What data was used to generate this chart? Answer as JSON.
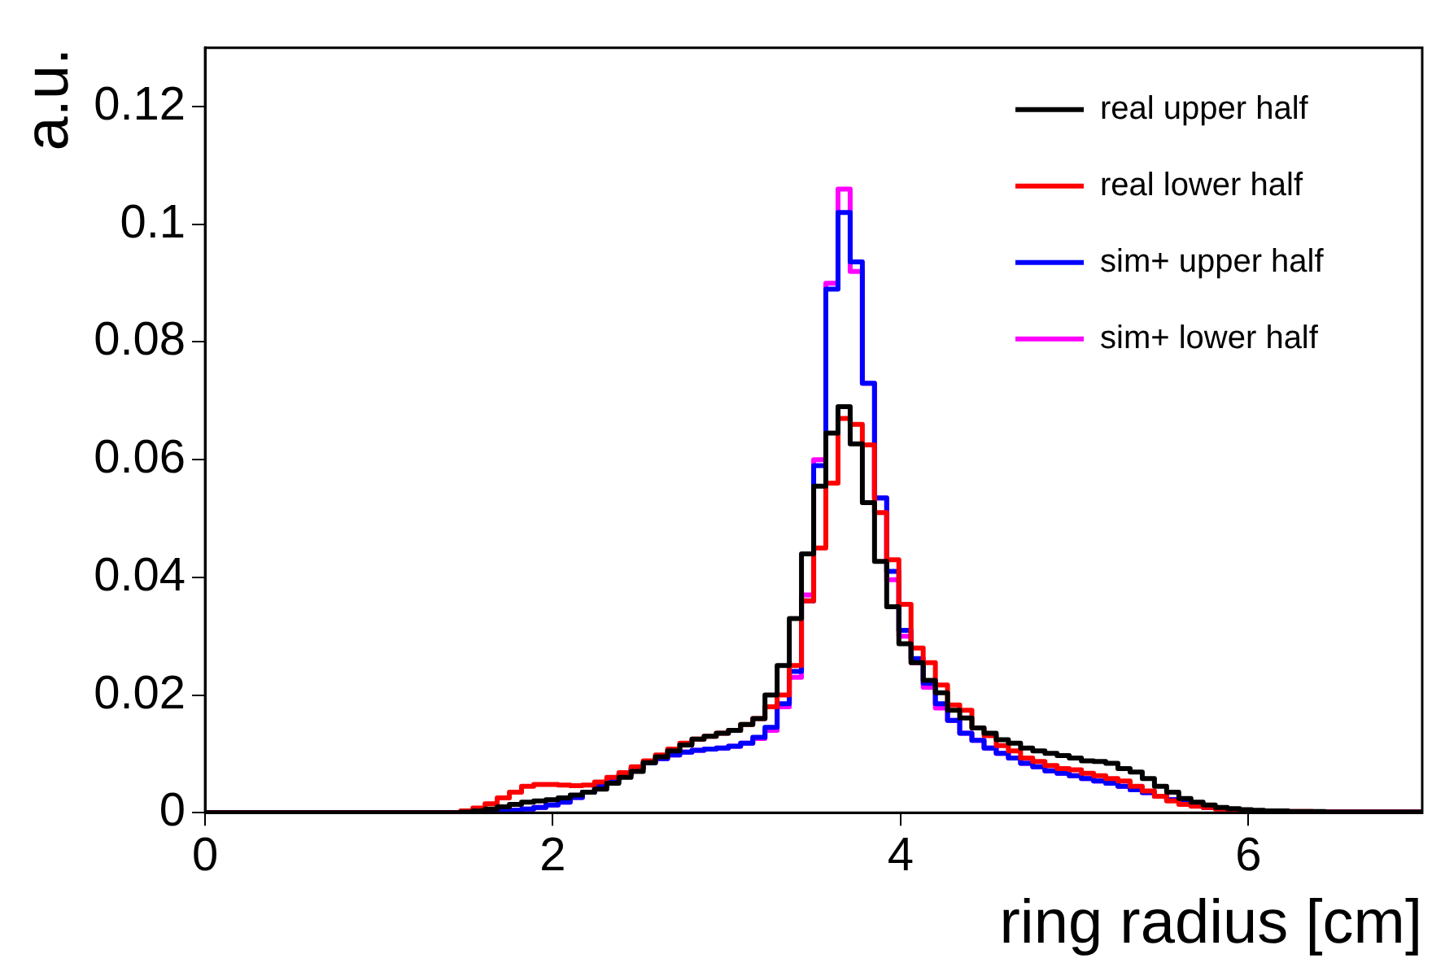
{
  "chart_data": {
    "type": "histogram",
    "xlabel": "ring radius [cm]",
    "ylabel": "a.u.",
    "bins": [
      0,
      0.07,
      0.14,
      0.21,
      0.28,
      0.35,
      0.42,
      0.49,
      0.56,
      0.63,
      0.7,
      0.77,
      0.84,
      0.91,
      0.98,
      1.05,
      1.12,
      1.19,
      1.26,
      1.33,
      1.4,
      1.47,
      1.54,
      1.61,
      1.68,
      1.75,
      1.82,
      1.89,
      1.96,
      2.03,
      2.1,
      2.17,
      2.24,
      2.31,
      2.38,
      2.45,
      2.52,
      2.59,
      2.66,
      2.73,
      2.8,
      2.87,
      2.94,
      3.01,
      3.08,
      3.15,
      3.22,
      3.29,
      3.36,
      3.43,
      3.5,
      3.57,
      3.64,
      3.71,
      3.78,
      3.85,
      3.92,
      3.99,
      4.06,
      4.13,
      4.2,
      4.27,
      4.34,
      4.41,
      4.48,
      4.55,
      4.62,
      4.69,
      4.76,
      4.83,
      4.9,
      4.97,
      5.04,
      5.11,
      5.18,
      5.25,
      5.32,
      5.39,
      5.46,
      5.53,
      5.6,
      5.67,
      5.74,
      5.81,
      5.88,
      5.95,
      6.02,
      6.09,
      6.16,
      6.23,
      6.3,
      6.37,
      6.44,
      6.51,
      6.58,
      6.65,
      6.72,
      6.79,
      6.86,
      6.93,
      7
    ],
    "series": [
      {
        "name": "real upper half",
        "color": "#000000",
        "values": [
          0,
          0,
          0,
          0,
          0,
          0,
          0,
          0,
          0,
          0,
          0,
          0,
          0,
          0,
          0,
          0,
          0,
          0,
          0,
          0,
          0,
          0.0001,
          0.0003,
          0.0006,
          0.001,
          0.0014,
          0.0018,
          0.002,
          0.0022,
          0.0025,
          0.003,
          0.0035,
          0.004,
          0.005,
          0.006,
          0.007,
          0.0085,
          0.0095,
          0.0105,
          0.0115,
          0.0125,
          0.013,
          0.0135,
          0.014,
          0.015,
          0.016,
          0.02,
          0.025,
          0.033,
          0.044,
          0.0555,
          0.0645,
          0.069,
          0.0627,
          0.0527,
          0.0427,
          0.035,
          0.0287,
          0.0255,
          0.0225,
          0.0204,
          0.0174,
          0.0161,
          0.0144,
          0.0135,
          0.0124,
          0.0118,
          0.011,
          0.0105,
          0.0101,
          0.0097,
          0.0093,
          0.0088,
          0.0087,
          0.0084,
          0.0075,
          0.0069,
          0.0058,
          0.0045,
          0.0035,
          0.0024,
          0.0018,
          0.0013,
          0.0009,
          0.0007,
          0.0005,
          0.0004,
          0.0003,
          0.0003,
          0.0002,
          0.0002,
          0.0002,
          0.0001,
          0.0001,
          0.0001,
          0.0001,
          0.0001,
          0.0001,
          0.0001,
          0.0001
        ]
      },
      {
        "name": "real lower half",
        "color": "#ff0000",
        "values": [
          0,
          0,
          0,
          0,
          0,
          0,
          0,
          0,
          0,
          0,
          0,
          0,
          0,
          0,
          0,
          0,
          0,
          0,
          0,
          0,
          0,
          0.0003,
          0.0008,
          0.0015,
          0.0025,
          0.0035,
          0.0045,
          0.0048,
          0.0048,
          0.0047,
          0.0046,
          0.0047,
          0.0052,
          0.006,
          0.0068,
          0.0078,
          0.0088,
          0.0098,
          0.0108,
          0.0118,
          0.0125,
          0.013,
          0.0135,
          0.014,
          0.015,
          0.016,
          0.018,
          0.02,
          0.025,
          0.036,
          0.045,
          0.056,
          0.067,
          0.066,
          0.0625,
          0.051,
          0.043,
          0.0354,
          0.028,
          0.0255,
          0.0217,
          0.0183,
          0.0174,
          0.0144,
          0.0131,
          0.0114,
          0.0105,
          0.0093,
          0.0087,
          0.008,
          0.0075,
          0.0073,
          0.0067,
          0.0063,
          0.0058,
          0.0054,
          0.0045,
          0.0037,
          0.0028,
          0.002,
          0.0014,
          0.0011,
          0.0009,
          0.0006,
          0.0004,
          0.0003,
          0.0003,
          0.0002,
          0.0002,
          0.0002,
          0.0002,
          0.0001,
          0.0001,
          0.0001,
          0.0001,
          0.0001,
          0.0001,
          0.0001,
          0.0001,
          0.0001
        ]
      },
      {
        "name": "sim+ upper half",
        "color": "#0000ff",
        "values": [
          0,
          0,
          0,
          0,
          0,
          0,
          0,
          0,
          0,
          0,
          0,
          0,
          0,
          0,
          0,
          0,
          0,
          0,
          0,
          0,
          0,
          0,
          0,
          0.0001,
          0.0002,
          0.0004,
          0.0006,
          0.0009,
          0.0013,
          0.0018,
          0.0026,
          0.0035,
          0.0045,
          0.0055,
          0.0065,
          0.0075,
          0.0085,
          0.0092,
          0.0098,
          0.0103,
          0.0106,
          0.0108,
          0.011,
          0.0113,
          0.0118,
          0.0128,
          0.0145,
          0.0185,
          0.024,
          0.036,
          0.059,
          0.089,
          0.102,
          0.0936,
          0.073,
          0.0535,
          0.041,
          0.031,
          0.0262,
          0.022,
          0.0185,
          0.0157,
          0.0135,
          0.0123,
          0.011,
          0.0101,
          0.0093,
          0.0084,
          0.0078,
          0.0071,
          0.0067,
          0.0063,
          0.0058,
          0.0054,
          0.005,
          0.0045,
          0.0039,
          0.0034,
          0.0028,
          0.0022,
          0.0017,
          0.0013,
          0.0009,
          0.0007,
          0.0005,
          0.0003,
          0.0002,
          0.0002,
          0.0002,
          0.0001,
          0.0001,
          0.0001,
          0.0001,
          0.0001,
          0.0001,
          0.0001,
          0.0001,
          0.0001,
          0.0001,
          0.0001
        ]
      },
      {
        "name": "sim+ lower half",
        "color": "#ff00ff",
        "values": [
          0,
          0,
          0,
          0,
          0,
          0,
          0,
          0,
          0,
          0,
          0,
          0,
          0,
          0,
          0,
          0,
          0,
          0,
          0,
          0,
          0,
          0,
          0,
          0.0001,
          0.0002,
          0.0004,
          0.0006,
          0.0009,
          0.0013,
          0.0018,
          0.0026,
          0.0035,
          0.0045,
          0.0055,
          0.0065,
          0.0075,
          0.0085,
          0.0092,
          0.0098,
          0.0103,
          0.0106,
          0.0108,
          0.011,
          0.0113,
          0.0118,
          0.0126,
          0.014,
          0.018,
          0.023,
          0.037,
          0.06,
          0.09,
          0.106,
          0.092,
          0.073,
          0.0535,
          0.0396,
          0.03,
          0.0255,
          0.0213,
          0.0178,
          0.0157,
          0.0135,
          0.0123,
          0.011,
          0.0101,
          0.0093,
          0.0084,
          0.0078,
          0.0071,
          0.0067,
          0.0063,
          0.0058,
          0.0054,
          0.005,
          0.0045,
          0.0039,
          0.0034,
          0.0028,
          0.0022,
          0.0017,
          0.0013,
          0.0009,
          0.0007,
          0.0005,
          0.0003,
          0.0002,
          0.0002,
          0.0002,
          0.0001,
          0.0001,
          0.0001,
          0.0001,
          0.0001,
          0.0001,
          0.0001,
          0.0001,
          0.0001,
          0.0001,
          0.0001
        ]
      }
    ],
    "xlim": [
      0,
      7
    ],
    "xticks": [
      0,
      2,
      4,
      6
    ],
    "ylim": [
      0,
      0.13
    ],
    "yticks": [
      0,
      0.02,
      0.04,
      0.06,
      0.08,
      {
        "value": 0.1,
        "label": "0.1"
      },
      0.12
    ],
    "legend": "top right",
    "grid": false
  }
}
